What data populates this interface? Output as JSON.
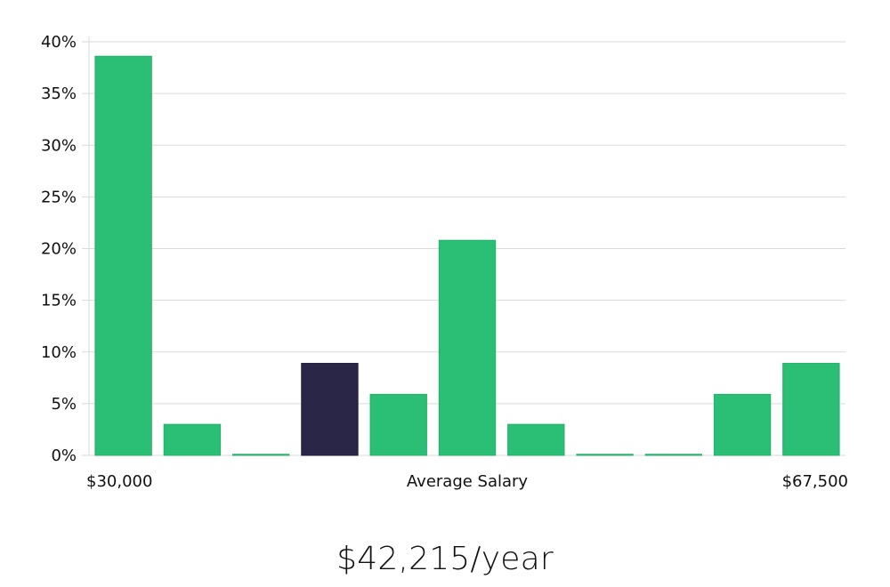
{
  "chart_data": {
    "type": "bar",
    "categories": [
      "$30,000",
      "",
      "",
      "",
      "",
      "",
      "",
      "",
      "",
      "",
      "$67,500"
    ],
    "values": [
      38.6,
      3.0,
      0.0,
      8.9,
      5.9,
      20.8,
      3.0,
      0.0,
      0.0,
      5.9,
      8.9
    ],
    "highlight_index": 3,
    "ylim": [
      0,
      40
    ],
    "yticks": [
      0,
      5,
      10,
      15,
      20,
      25,
      30,
      35,
      40
    ],
    "ytick_suffix": "%",
    "xlabel": "Average Salary",
    "x_start_label": "$30,000",
    "x_end_label": "$67,500",
    "colors": {
      "bar": "#2bbf76",
      "bar_stroke": "#22b06a",
      "highlight": "#2a2648",
      "grid": "#dadada"
    }
  },
  "summary": {
    "salary_text": "$42,215/year"
  }
}
